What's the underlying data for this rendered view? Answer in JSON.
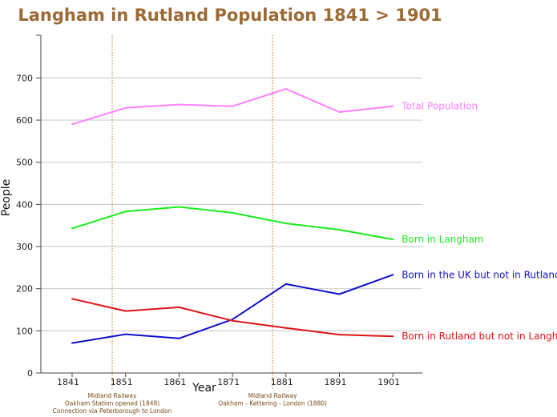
{
  "chart_data": {
    "type": "line",
    "title": "Langham in Rutland Population 1841 > 1901",
    "xlabel": "Year",
    "ylabel": "People",
    "ylim": [
      0,
      780
    ],
    "ytick_values": [
      0,
      100,
      200,
      300,
      400,
      500,
      600,
      700
    ],
    "grid": true,
    "categories": [
      "1841",
      "1851",
      "1861",
      "1871",
      "1881",
      "1891",
      "1901"
    ],
    "series": [
      {
        "name": "Total Population",
        "color": "#ff80ff",
        "values": [
          590,
          629,
          637,
          633,
          674,
          619,
          633
        ]
      },
      {
        "name": "Born in Langham",
        "color": "#19ee19",
        "values": [
          343,
          383,
          394,
          380,
          355,
          340,
          317
        ]
      },
      {
        "name": "Born in the UK but not in Rutland",
        "color": "#1010cc",
        "values": [
          71,
          92,
          82,
          127,
          211,
          187,
          233
        ]
      },
      {
        "name": "Born in Rutland but not in Langham",
        "color": "#e01414",
        "values": [
          176,
          147,
          156,
          124,
          107,
          91,
          87
        ]
      }
    ],
    "annotations": [
      {
        "after_category": "1841",
        "lines": [
          "Midland Railway",
          "Oakham Station opened (1848)",
          "Connection via Peterborough to London"
        ]
      },
      {
        "after_category": "1871",
        "lines": [
          "Midland Railway",
          "Oakham - Kettering - London (1880)"
        ]
      }
    ],
    "annotation_line_color": "#b07030"
  }
}
